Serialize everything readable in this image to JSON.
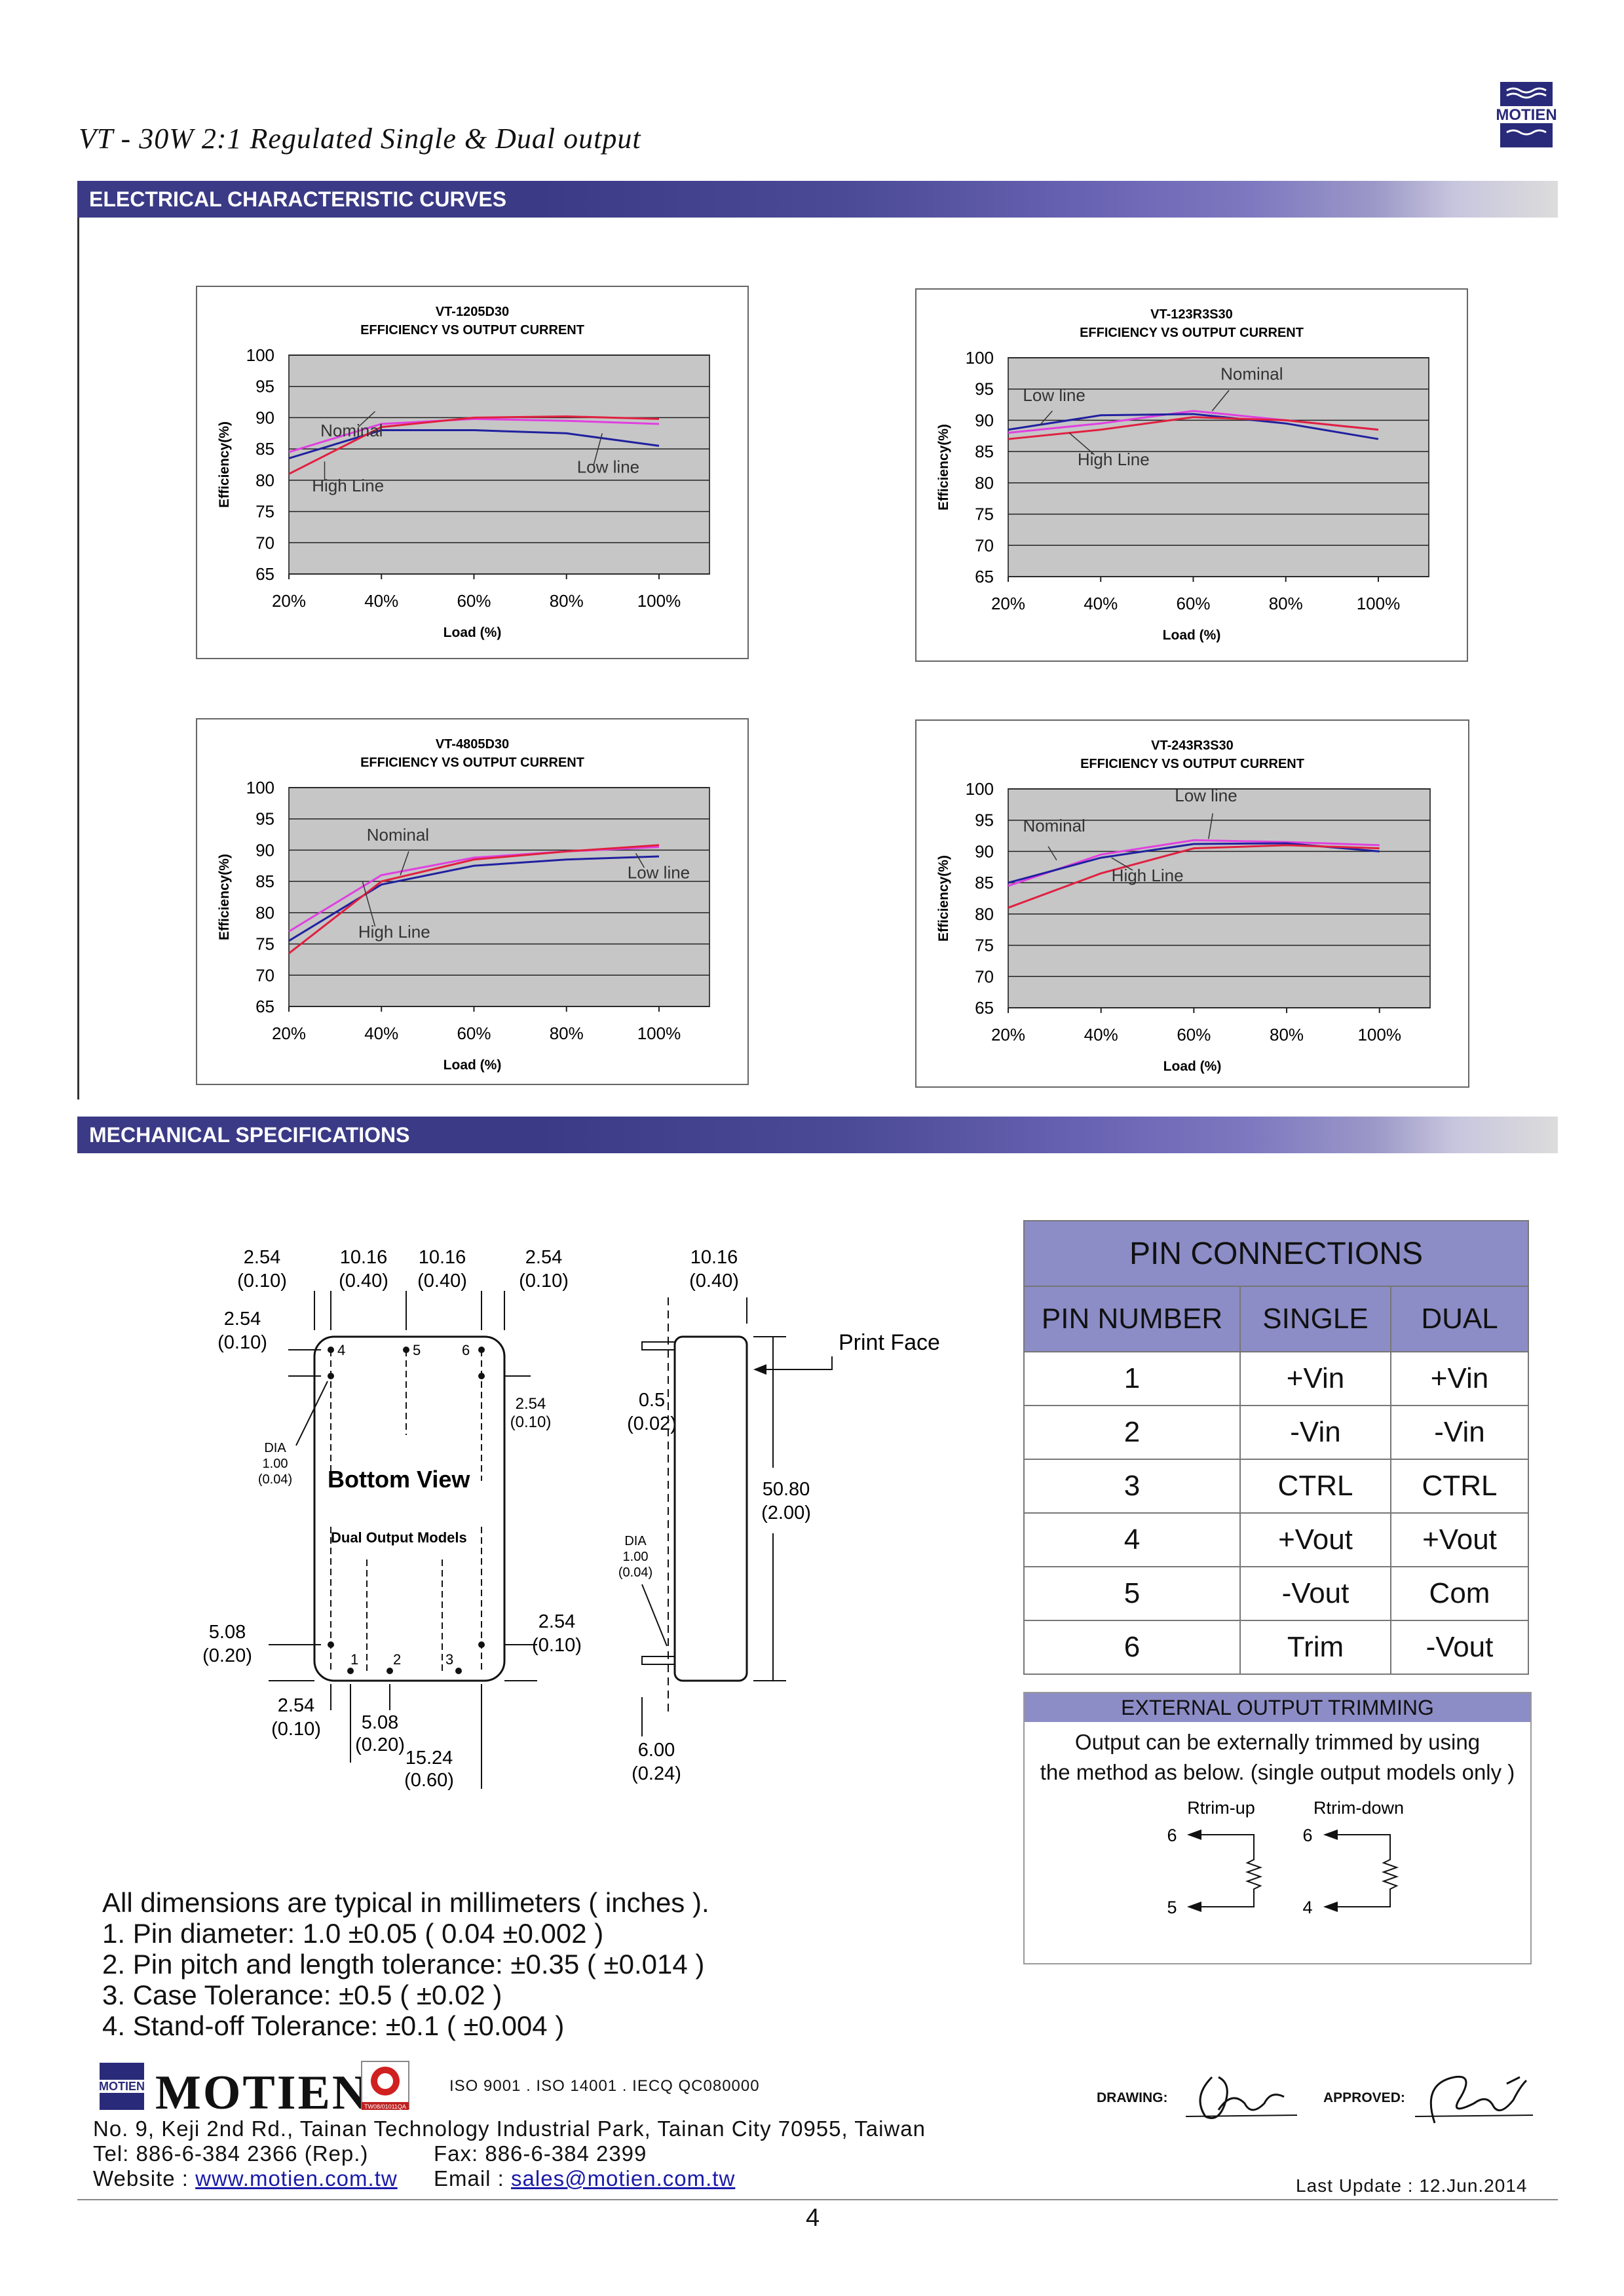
{
  "header": {
    "title": "VT - 30W 2:1 Regulated Single & Dual  output"
  },
  "sections": {
    "electrical": "ELECTRICAL CHARACTERISTIC CURVES",
    "mechanical": "MECHANICAL SPECIFICATIONS"
  },
  "chart_data": [
    {
      "type": "line",
      "title": "VT-1205D30",
      "subtitle": "EFFICIENCY VS OUTPUT CURRENT",
      "xlabel": "Load (%)",
      "ylabel": "Efficiency(%)",
      "categories": [
        "20%",
        "40%",
        "60%",
        "80%",
        "100%"
      ],
      "ylim": [
        65,
        100
      ],
      "yticks": [
        100,
        95,
        90,
        85,
        80,
        75,
        70,
        65
      ],
      "series": [
        {
          "name": "Nominal",
          "color": "#e040e0",
          "values": [
            84.5,
            89,
            89.8,
            89.5,
            89
          ]
        },
        {
          "name": "Low line",
          "color": "#2020a0",
          "values": [
            83.5,
            88,
            88,
            87.5,
            85.5
          ]
        },
        {
          "name": "High Line",
          "color": "#e02040",
          "values": [
            81,
            88.5,
            90,
            90.2,
            89.8
          ]
        }
      ],
      "annotations": [
        {
          "text": "Nominal"
        },
        {
          "text": "High Line"
        },
        {
          "text": "Low line"
        }
      ]
    },
    {
      "type": "line",
      "title": "VT-123R3S30",
      "subtitle": "EFFICIENCY VS OUTPUT CURRENT",
      "xlabel": "Load (%)",
      "ylabel": "Efficiency(%)",
      "categories": [
        "20%",
        "40%",
        "60%",
        "80%",
        "100%"
      ],
      "ylim": [
        65,
        100
      ],
      "yticks": [
        100,
        95,
        90,
        85,
        80,
        75,
        70,
        65
      ],
      "series": [
        {
          "name": "Nominal",
          "color": "#e040e0",
          "values": [
            88,
            89.5,
            91.5,
            90,
            88.5
          ]
        },
        {
          "name": "Low line",
          "color": "#2020a0",
          "values": [
            88.5,
            90.8,
            91,
            89.5,
            87
          ]
        },
        {
          "name": "High Line",
          "color": "#e02040",
          "values": [
            87,
            88.5,
            90.5,
            90,
            88.5
          ]
        }
      ],
      "annotations": [
        {
          "text": "Low line"
        },
        {
          "text": "Nominal"
        },
        {
          "text": "High Line"
        }
      ]
    },
    {
      "type": "line",
      "title": "VT-4805D30",
      "subtitle": "EFFICIENCY VS OUTPUT CURRENT",
      "xlabel": "Load (%)",
      "ylabel": "Efficiency(%)",
      "categories": [
        "20%",
        "40%",
        "60%",
        "80%",
        "100%"
      ],
      "ylim": [
        65,
        100
      ],
      "yticks": [
        100,
        95,
        90,
        85,
        80,
        75,
        70,
        65
      ],
      "series": [
        {
          "name": "Nominal",
          "color": "#e040e0",
          "values": [
            77,
            86,
            88.8,
            89.8,
            90.5
          ]
        },
        {
          "name": "Low line",
          "color": "#2020a0",
          "values": [
            75.5,
            84.5,
            87.5,
            88.5,
            89
          ]
        },
        {
          "name": "High Line",
          "color": "#e02040",
          "values": [
            73.5,
            85,
            88.5,
            89.8,
            90.8
          ]
        }
      ],
      "annotations": [
        {
          "text": "Nominal"
        },
        {
          "text": "Low line"
        },
        {
          "text": "High Line"
        }
      ]
    },
    {
      "type": "line",
      "title": "VT-243R3S30",
      "subtitle": "EFFICIENCY VS OUTPUT CURRENT",
      "xlabel": "Load (%)",
      "ylabel": "Efficiency(%)",
      "categories": [
        "20%",
        "40%",
        "60%",
        "80%",
        "100%"
      ],
      "ylim": [
        65,
        100
      ],
      "yticks": [
        100,
        95,
        90,
        85,
        80,
        75,
        70,
        65
      ],
      "series": [
        {
          "name": "Nominal",
          "color": "#e040e0",
          "values": [
            84.5,
            89.5,
            91.8,
            91.5,
            91
          ]
        },
        {
          "name": "Low line",
          "color": "#2020a0",
          "values": [
            85,
            89,
            91.2,
            91.3,
            90
          ]
        },
        {
          "name": "High Line",
          "color": "#e02040",
          "values": [
            81,
            86.5,
            90.5,
            91,
            90.5
          ]
        }
      ],
      "annotations": [
        {
          "text": "Nominal"
        },
        {
          "text": "Low line"
        },
        {
          "text": "High Line"
        }
      ]
    }
  ],
  "drawing": {
    "bottom_view": "Bottom View",
    "dual_models": "Dual Output Models",
    "dia_label": "DIA",
    "dia_value": "1.00",
    "dia_inch": "(0.04)",
    "dims_mm": [
      "2.54",
      "10.16",
      "10.16",
      "2.54",
      "2.54",
      "2.54",
      "5.08",
      "2.54",
      "2.54",
      "5.08",
      "15.24",
      "10.16",
      "0.5",
      "50.80",
      "6.00"
    ],
    "dims_in": [
      "(0.10)",
      "(0.40)",
      "(0.40)",
      "(0.10)",
      "(0.10)",
      "(0.10)",
      "(0.20)",
      "(0.10)",
      "(0.10)",
      "(0.20)",
      "(0.60)",
      "(0.40)",
      "(0.02)",
      "(2.00)",
      "(0.24)"
    ],
    "pins_top": [
      "4",
      "5",
      "6"
    ],
    "pins_bottom": [
      "1",
      "2",
      "3"
    ],
    "print_face": "Print Face"
  },
  "pin_table": {
    "title": "PIN CONNECTIONS",
    "columns": [
      "PIN NUMBER",
      "SINGLE",
      "DUAL"
    ],
    "rows": [
      [
        "1",
        "+Vin",
        "+Vin"
      ],
      [
        "2",
        "-Vin",
        "-Vin"
      ],
      [
        "3",
        "CTRL",
        "CTRL"
      ],
      [
        "4",
        "+Vout",
        "+Vout"
      ],
      [
        "5",
        "-Vout",
        "Com"
      ],
      [
        "6",
        "Trim",
        "-Vout"
      ]
    ]
  },
  "trimming": {
    "title": "EXTERNAL OUTPUT TRIMMING",
    "line1": "Output can be externally trimmed by using",
    "line2": "the method as below. (single output models only )",
    "up_label": "Rtrim-up",
    "down_label": "Rtrim-down",
    "up_pins": [
      "6",
      "5"
    ],
    "down_pins": [
      "6",
      "4"
    ]
  },
  "notes": [
    "All dimensions are typical in millimeters ( inches ).",
    "1.  Pin diameter: 1.0 ±0.05 ( 0.04 ±0.002 )",
    "2.  Pin pitch and length tolerance:  ±0.35 ( ±0.014 )",
    "3.  Case Tolerance:  ±0.5 ( ±0.02 )",
    "4.  Stand-off Tolerance: ±0.1 ( ±0.004 )"
  ],
  "footer": {
    "brand": "MOTIEN",
    "logo_text": "MOTIEN",
    "cert_code": "TW08/01011QA",
    "certs": "ISO 9001 . ISO 14001 . IECQ QC080000",
    "address": "No. 9, Keji 2nd Rd., Tainan Technology Industrial Park, Tainan City 70955, Taiwan",
    "tel": "Tel: 886-6-384 2366 (Rep.)",
    "fax": "Fax: 886-6-384 2399",
    "website_label": "Website : ",
    "website": "www.motien.com.tw",
    "email_label": "Email : ",
    "email": "sales@motien.com.tw",
    "drawing_label": "DRAWING:",
    "approved_label": "APPROVED:",
    "last_update": "Last Update : 12.Jun.2014",
    "page_number": "4"
  }
}
